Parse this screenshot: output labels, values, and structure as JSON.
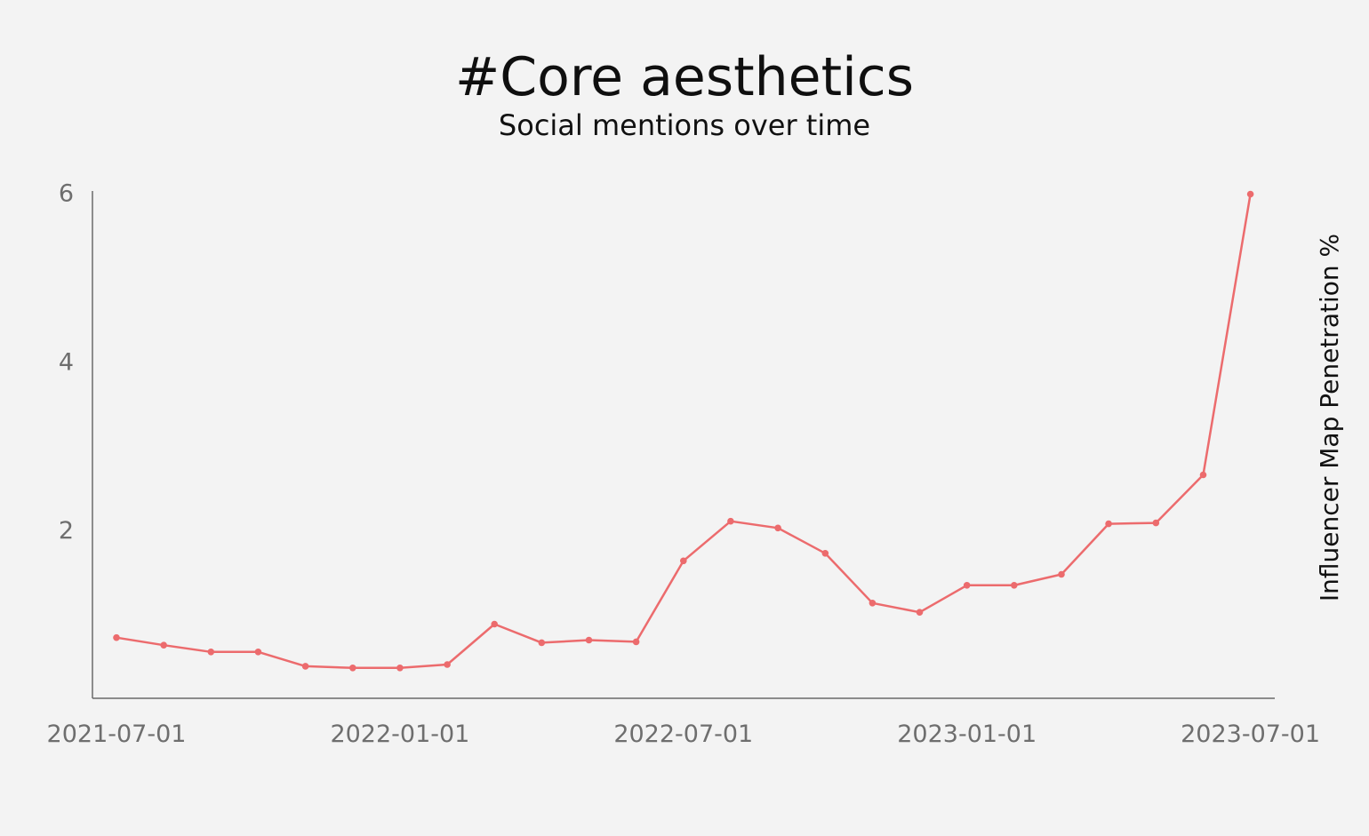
{
  "chart_data": {
    "type": "line",
    "title": "#Core aesthetics",
    "subtitle": "Social mentions over time",
    "xlabel": "",
    "ylabel": "Influencer Map Penetration %",
    "ylim": [
      0,
      6
    ],
    "yticks": [
      "2",
      "4",
      "6"
    ],
    "xticks": [
      "2021-07-01",
      "2022-01-01",
      "2022-07-01",
      "2023-01-01",
      "2023-07-01"
    ],
    "grid": false,
    "colors": {
      "series": "#ec6b6d",
      "axis": "#6a6a6a",
      "background": "#f3f3f3"
    },
    "series": [
      {
        "x": [
          "2021-07",
          "2021-08",
          "2021-09",
          "2021-10",
          "2021-11",
          "2021-12",
          "2022-01",
          "2022-02",
          "2022-03",
          "2022-04",
          "2022-05",
          "2022-06",
          "2022-07",
          "2022-08",
          "2022-09",
          "2022-10",
          "2022-11",
          "2022-12",
          "2023-01",
          "2023-02",
          "2023-03",
          "2023-04",
          "2023-05",
          "2023-06",
          "2023-07"
        ],
        "values": [
          0.72,
          0.63,
          0.55,
          0.55,
          0.38,
          0.36,
          0.36,
          0.4,
          0.88,
          0.66,
          0.69,
          0.67,
          1.63,
          2.1,
          2.02,
          1.72,
          1.13,
          1.02,
          1.34,
          1.34,
          1.47,
          2.07,
          2.08,
          2.65,
          5.98
        ]
      }
    ]
  }
}
